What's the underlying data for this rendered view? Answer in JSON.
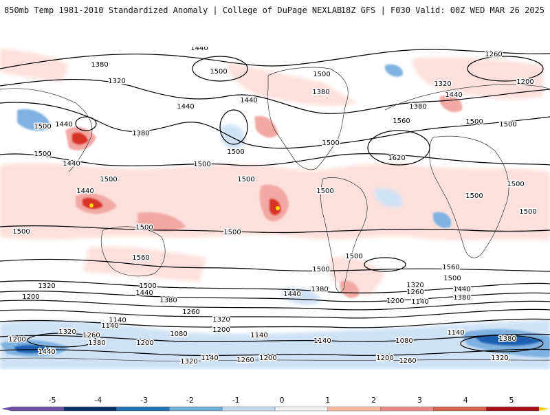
{
  "header": {
    "title": "850mb Temp 1981-2010 Standardized Anomaly | College of DuPage NEXLAB",
    "run_info": "18Z GFS | F030 Valid: 00Z WED MAR 26 2025"
  },
  "contour_labels": [
    {
      "id": "nh-1440-a",
      "text": "1440"
    },
    {
      "id": "nh-1380-a",
      "text": "1380"
    },
    {
      "id": "nh-1320-a",
      "text": "1320"
    },
    {
      "id": "nh-1500-a",
      "text": "1500"
    },
    {
      "id": "nh-1440-b",
      "text": "1440"
    },
    {
      "id": "nh-1500-b",
      "text": "1500"
    },
    {
      "id": "nh-1440-c",
      "text": "1440"
    },
    {
      "id": "nh-1380-b",
      "text": "1380"
    },
    {
      "id": "nh-1500-c",
      "text": "1500"
    },
    {
      "id": "nh-1440-d",
      "text": "1440"
    },
    {
      "id": "nh-1500-d",
      "text": "1500"
    },
    {
      "id": "nh-1500-e",
      "text": "1500"
    },
    {
      "id": "nh-1380-c",
      "text": "1380"
    },
    {
      "id": "nh-1260-a",
      "text": "1260"
    },
    {
      "id": "nh-1320-b",
      "text": "1320"
    },
    {
      "id": "nh-1200-a",
      "text": "1200"
    },
    {
      "id": "nh-1440-e",
      "text": "1440"
    },
    {
      "id": "nh-1380-d",
      "text": "1380"
    },
    {
      "id": "nh-1560-a",
      "text": "1560"
    },
    {
      "id": "nh-1500-f",
      "text": "1500"
    },
    {
      "id": "nh-1500-g",
      "text": "1500"
    },
    {
      "id": "nh-1620-a",
      "text": "1620"
    },
    {
      "id": "nh-1500-h",
      "text": "1500"
    },
    {
      "id": "nh-1380-e",
      "text": "1380"
    },
    {
      "id": "nh-1500-i",
      "text": "1500"
    },
    {
      "id": "nh-1500-j",
      "text": "1500"
    },
    {
      "id": "nh-1500-k",
      "text": "1500"
    },
    {
      "id": "nh-1440-f",
      "text": "1440"
    },
    {
      "id": "nh-1500-l",
      "text": "1500"
    },
    {
      "id": "nh-1440-g",
      "text": "1440"
    },
    {
      "id": "eq-1500-a",
      "text": "1500"
    },
    {
      "id": "eq-1500-b",
      "text": "1500"
    },
    {
      "id": "eq-1500-c",
      "text": "1500"
    },
    {
      "id": "eq-1500-d",
      "text": "1500"
    },
    {
      "id": "eq-1500-e",
      "text": "1500"
    },
    {
      "id": "eq-1500-f",
      "text": "1500"
    },
    {
      "id": "eq-1500-g",
      "text": "1500"
    },
    {
      "id": "eq-1500-h",
      "text": "1500"
    },
    {
      "id": "eq-1500-i",
      "text": "1500"
    },
    {
      "id": "eq-1500-j",
      "text": "1500"
    },
    {
      "id": "sh-1560-a",
      "text": "1560"
    },
    {
      "id": "sh-1560-b",
      "text": "1560"
    },
    {
      "id": "sh-1500-a",
      "text": "1500"
    },
    {
      "id": "sh-1500-b",
      "text": "1500"
    },
    {
      "id": "sh-1500-c",
      "text": "1500"
    },
    {
      "id": "sh-1500-d",
      "text": "1500"
    },
    {
      "id": "sh-1500-e",
      "text": "1500"
    },
    {
      "id": "sh-1320-a",
      "text": "1320"
    },
    {
      "id": "sh-1200-a",
      "text": "1200"
    },
    {
      "id": "sh-1440-a",
      "text": "1440"
    },
    {
      "id": "sh-1380-a",
      "text": "1380"
    },
    {
      "id": "sh-1440-b",
      "text": "1440"
    },
    {
      "id": "sh-1380-b",
      "text": "1380"
    },
    {
      "id": "sh-1260-a",
      "text": "1260"
    },
    {
      "id": "sh-1320-b",
      "text": "1320"
    },
    {
      "id": "sh-1140-a",
      "text": "1140"
    },
    {
      "id": "sh-1140-b",
      "text": "1140"
    },
    {
      "id": "sh-1320-c",
      "text": "1320"
    },
    {
      "id": "sh-1260-b",
      "text": "1260"
    },
    {
      "id": "sh-1200-b",
      "text": "1200"
    },
    {
      "id": "sh-1080-a",
      "text": "1080"
    },
    {
      "id": "sh-1200-c",
      "text": "1200"
    },
    {
      "id": "sh-1140-c",
      "text": "1140"
    },
    {
      "id": "sh-1140-d",
      "text": "1140"
    },
    {
      "id": "sh-1200-d",
      "text": "1200"
    },
    {
      "id": "sh-1380-c",
      "text": "1380"
    },
    {
      "id": "sh-1440-c",
      "text": "1440"
    },
    {
      "id": "sh-1380-d",
      "text": "1380"
    },
    {
      "id": "sh-1320-d",
      "text": "1320"
    },
    {
      "id": "sh-1260-c",
      "text": "1260"
    },
    {
      "id": "sh-1320-e",
      "text": "1320"
    },
    {
      "id": "sh-1260-d",
      "text": "1260"
    },
    {
      "id": "sh-1200-e",
      "text": "1200"
    },
    {
      "id": "sh-1140-e",
      "text": "1140"
    },
    {
      "id": "sh-1440-d",
      "text": "1440"
    },
    {
      "id": "sh-1380-e",
      "text": "1380"
    },
    {
      "id": "sh-1080-b",
      "text": "1080"
    },
    {
      "id": "sh-1140-f",
      "text": "1140"
    },
    {
      "id": "sh-1200-f",
      "text": "1200"
    },
    {
      "id": "sh-1200-g",
      "text": "1200"
    },
    {
      "id": "sh-1260-e",
      "text": "1260"
    },
    {
      "id": "sh-1140-g",
      "text": "1140"
    },
    {
      "id": "sh-1380-f",
      "text": "1380"
    },
    {
      "id": "sh-1320-f",
      "text": "1320"
    },
    {
      "id": "sh-1260-f",
      "text": "1260"
    },
    {
      "id": "sh-1320-g",
      "text": "1320"
    },
    {
      "id": "sh-1200-h",
      "text": "1200"
    },
    {
      "id": "sh-1140-h",
      "text": "1140"
    }
  ],
  "colorbar": {
    "tick_labels": [
      "-5",
      "-4",
      "-3",
      "-2",
      "-1",
      "0",
      "1",
      "2",
      "3",
      "4",
      "5"
    ],
    "colors": [
      "#6a51a3",
      "#08306b",
      "#2171b5",
      "#6baed6",
      "#c6dbef",
      "#ffffff",
      "#fcbba1",
      "#ef8a8a",
      "#d6604d",
      "#a50f15",
      "#fdd000"
    ]
  },
  "legend_colors": {
    "strong_cold": "#1f5fb0",
    "cold": "#7fb2e0",
    "slight_cold": "#cfe2f5",
    "slight_warm": "#fde0dc",
    "warm": "#f2a9a4",
    "strong_warm": "#d73027",
    "extreme_warm": "#a50f15",
    "max": "#ffe000"
  }
}
